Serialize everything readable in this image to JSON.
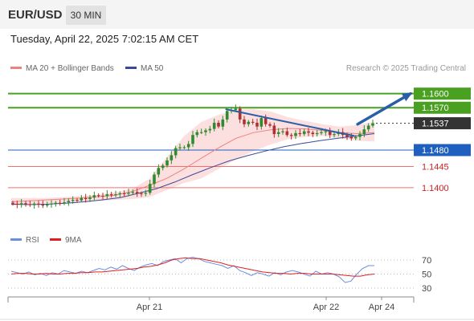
{
  "header": {
    "symbol": "EUR/USD",
    "timeframe": "30 MIN"
  },
  "datetime": "Tuesday, April 22, 2025 7:02:15 AM CET",
  "legend": {
    "ma20": "MA 20 + Bollinger Bands",
    "ma50": "MA 50"
  },
  "research": "Research © 2025 Trading Central",
  "rsi_legend": {
    "rsi": "RSI",
    "ma": "9MA"
  },
  "colors": {
    "bull": "#2e8b2e",
    "bear": "#b03030",
    "ma20": "#f08080",
    "ma50": "#3a4a9a",
    "band": "#fcd9d9",
    "resistance": "#4aa020",
    "pivot": "#1f5fbf",
    "support": "#f07070",
    "current": "#333333",
    "arrow": "#2a5fa8",
    "rsi": "#6a8fe0",
    "rsi_ma": "#e02020"
  },
  "chart_data": {
    "type": "candlestick",
    "y_range": [
      1.1335,
      1.1625
    ],
    "x_labels": [
      "Apr 21",
      "Apr 22",
      "Apr 24"
    ],
    "levels": [
      {
        "value": 1.16,
        "label": "1.1600",
        "kind": "resistance"
      },
      {
        "value": 1.157,
        "label": "1.1570",
        "kind": "resistance"
      },
      {
        "value": 1.1537,
        "label": "1.1537",
        "kind": "current"
      },
      {
        "value": 1.148,
        "label": "1.1480",
        "kind": "pivot"
      },
      {
        "value": 1.1445,
        "label": "1.1445",
        "kind": "support"
      },
      {
        "value": 1.14,
        "label": "1.1400",
        "kind": "support"
      }
    ],
    "closes": [
      1.1366,
      1.1364,
      1.1367,
      1.1365,
      1.1363,
      1.1366,
      1.1364,
      1.1362,
      1.1365,
      1.1366,
      1.1368,
      1.1367,
      1.1369,
      1.1372,
      1.1374,
      1.1373,
      1.1378,
      1.1376,
      1.1379,
      1.1384,
      1.1383,
      1.1382,
      1.1386,
      1.1384,
      1.1386,
      1.1388,
      1.1387,
      1.1389,
      1.1391,
      1.1388,
      1.1387,
      1.1389,
      1.1408,
      1.1428,
      1.1442,
      1.1447,
      1.1458,
      1.1469,
      1.1484,
      1.1486,
      1.1486,
      1.1493,
      1.1512,
      1.1518,
      1.1518,
      1.1522,
      1.1525,
      1.1538,
      1.153,
      1.1545,
      1.1563,
      1.1565,
      1.1568,
      1.1545,
      1.1535,
      1.154,
      1.1538,
      1.153,
      1.1548,
      1.1535,
      1.1532,
      1.1514,
      1.1518,
      1.152,
      1.1512,
      1.151,
      1.1516,
      1.1514,
      1.152,
      1.1517,
      1.1514,
      1.1516,
      1.1518,
      1.152,
      1.1512,
      1.1514,
      1.1518,
      1.1512,
      1.1508,
      1.1505,
      1.1508,
      1.1514,
      1.1524,
      1.1532,
      1.1537
    ],
    "ma20": [
      1.137,
      1.1372,
      1.1374,
      1.1376,
      1.1378,
      1.1381,
      1.1384,
      1.1392,
      1.1405,
      1.142,
      1.144,
      1.1463,
      1.1485,
      1.1505,
      1.1517,
      1.1523,
      1.1526,
      1.1525,
      1.1522,
      1.1517,
      1.1515,
      1.1517
    ],
    "ma50": [
      1.1365,
      1.1364,
      1.1365,
      1.1367,
      1.137,
      1.1374,
      1.1379,
      1.1388,
      1.1398,
      1.1412,
      1.1428,
      1.1443,
      1.1457,
      1.1468,
      1.1478,
      1.1487,
      1.1494,
      1.15,
      1.1505,
      1.151,
      1.1515
    ],
    "bb_upper": [
      1.1378,
      1.1378,
      1.1378,
      1.138,
      1.1382,
      1.1385,
      1.139,
      1.1398,
      1.1419,
      1.1465,
      1.151,
      1.154,
      1.1555,
      1.1566,
      1.1567,
      1.1562,
      1.155,
      1.1542,
      1.1535,
      1.153,
      1.1533,
      1.154
    ],
    "bb_lower": [
      1.1362,
      1.1364,
      1.1367,
      1.1368,
      1.137,
      1.1372,
      1.1374,
      1.1376,
      1.138,
      1.1395,
      1.141,
      1.142,
      1.144,
      1.146,
      1.1478,
      1.1492,
      1.1503,
      1.1508,
      1.151,
      1.1505,
      1.15,
      1.1498
    ],
    "trendline": [
      [
        1.1567,
        0.59
      ],
      [
        1.151,
        0.945
      ]
    ],
    "forecast_arrow": [
      [
        1.1535,
        0.945
      ],
      [
        1.16,
        1.0
      ]
    ],
    "rsi": {
      "ticks": [
        70,
        50,
        30
      ],
      "range": [
        22,
        78
      ],
      "rsi": [
        54,
        52,
        50,
        53,
        49,
        51,
        48,
        52,
        50,
        55,
        53,
        51,
        54,
        52,
        55,
        58,
        56,
        60,
        57,
        62,
        58,
        55,
        60,
        63,
        65,
        62,
        68,
        70,
        72,
        66,
        72,
        74,
        72,
        68,
        66,
        64,
        62,
        58,
        62,
        55,
        52,
        48,
        52,
        50,
        47,
        52,
        49,
        53,
        55,
        53,
        50,
        47,
        54,
        50,
        52,
        50,
        46,
        38,
        40,
        50,
        58,
        62,
        62
      ],
      "ma9": [
        50,
        51,
        51,
        50,
        50,
        51,
        50,
        50,
        51,
        51,
        52,
        52,
        53,
        53,
        54,
        55,
        56,
        57,
        58,
        60,
        61,
        63,
        66,
        70,
        72,
        73,
        72,
        72,
        70,
        68,
        66,
        63,
        61,
        59,
        57,
        55,
        53,
        52,
        51,
        51,
        50,
        51,
        51,
        50,
        50,
        50,
        50,
        49,
        48,
        47,
        47,
        49,
        50
      ]
    }
  }
}
